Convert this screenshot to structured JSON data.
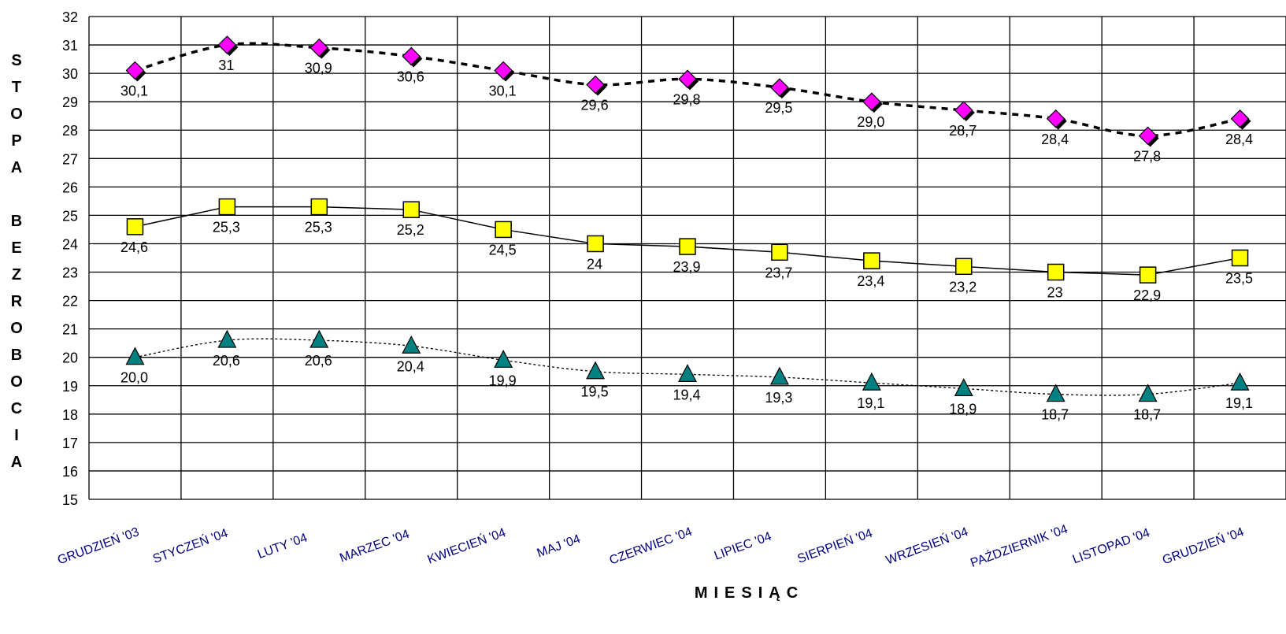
{
  "chart_data": {
    "type": "line",
    "ylabel": "STOPA BEZROBOCIA",
    "xlabel": "MIESIĄC",
    "ylim": [
      15,
      32
    ],
    "yticks": [
      15,
      16,
      17,
      18,
      19,
      20,
      21,
      22,
      23,
      24,
      25,
      26,
      27,
      28,
      29,
      30,
      31,
      32
    ],
    "grid": true,
    "categories": [
      "GRUDZIEŃ '03",
      "STYCZEŃ '04",
      "LUTY '04",
      "MARZEC '04",
      "KWIECIEŃ '04",
      "MAJ '04",
      "CZERWIEC '04",
      "LIPIEC '04",
      "SIERPIEŃ '04",
      "WRZESIEŃ '04",
      "PAŹDZIERNIK '04",
      "LISTOPAD '04",
      "GRUDZIEŃ '04"
    ],
    "series": [
      {
        "values": [
          30.1,
          31,
          30.9,
          30.6,
          30.1,
          29.6,
          29.8,
          29.5,
          29.0,
          28.7,
          28.4,
          27.8,
          28.4
        ],
        "labels": [
          "30,1",
          "31",
          "30,9",
          "30,6",
          "30,1",
          "29,6",
          "29,8",
          "29,5",
          "29,0",
          "28,7",
          "28,4",
          "27,8",
          "28,4"
        ],
        "marker": "diamond",
        "color": "#ff00ff",
        "line": "dashed-bold"
      },
      {
        "values": [
          24.6,
          25.3,
          25.3,
          25.2,
          24.5,
          24,
          23.9,
          23.7,
          23.4,
          23.2,
          23,
          22.9,
          23.5
        ],
        "labels": [
          "24,6",
          "25,3",
          "25,3",
          "25,2",
          "24,5",
          "24",
          "23,9",
          "23,7",
          "23,4",
          "23,2",
          "23",
          "22,9",
          "23,5"
        ],
        "marker": "square",
        "color": "#ffff00",
        "line": "solid"
      },
      {
        "values": [
          20.0,
          20.6,
          20.6,
          20.4,
          19.9,
          19.5,
          19.4,
          19.3,
          19.1,
          18.9,
          18.7,
          18.7,
          19.1
        ],
        "labels": [
          "20,0",
          "20,6",
          "20,6",
          "20,4",
          "19,9",
          "19,5",
          "19,4",
          "19,3",
          "19,1",
          "18,9",
          "18,7",
          "18,7",
          "19,1"
        ],
        "marker": "triangle",
        "color": "#008080",
        "line": "dotted"
      }
    ]
  }
}
